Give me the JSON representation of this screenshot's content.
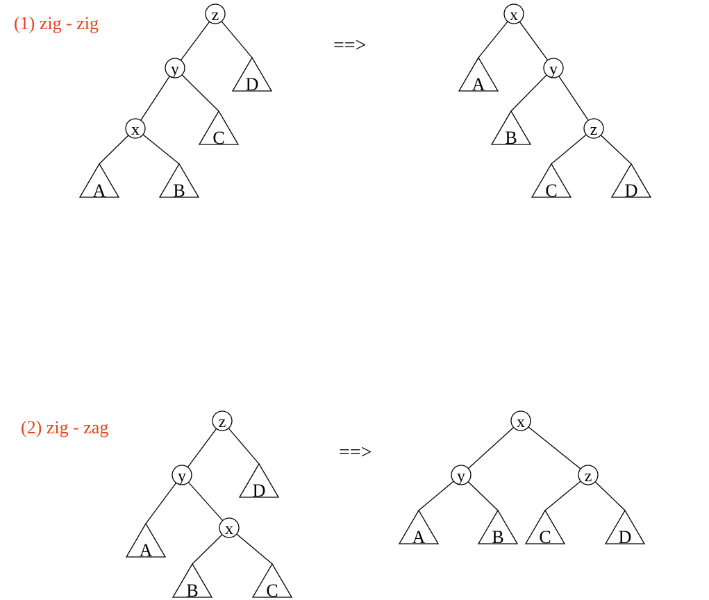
{
  "section1": {
    "title": "(1) zig - zig",
    "arrow": "==>",
    "before": {
      "nodes": [
        "z",
        "y",
        "x"
      ],
      "subtrees": [
        "A",
        "B",
        "C",
        "D"
      ]
    },
    "after": {
      "nodes": [
        "x",
        "y",
        "z"
      ],
      "subtrees": [
        "A",
        "B",
        "C",
        "D"
      ]
    }
  },
  "section2": {
    "title": "(2) zig - zag",
    "arrow": "==>",
    "before": {
      "nodes": [
        "z",
        "y",
        "x"
      ],
      "subtrees": [
        "A",
        "B",
        "C",
        "D"
      ]
    },
    "after": {
      "nodes": [
        "x",
        "y",
        "z"
      ],
      "subtrees": [
        "A",
        "B",
        "C",
        "D"
      ]
    }
  }
}
